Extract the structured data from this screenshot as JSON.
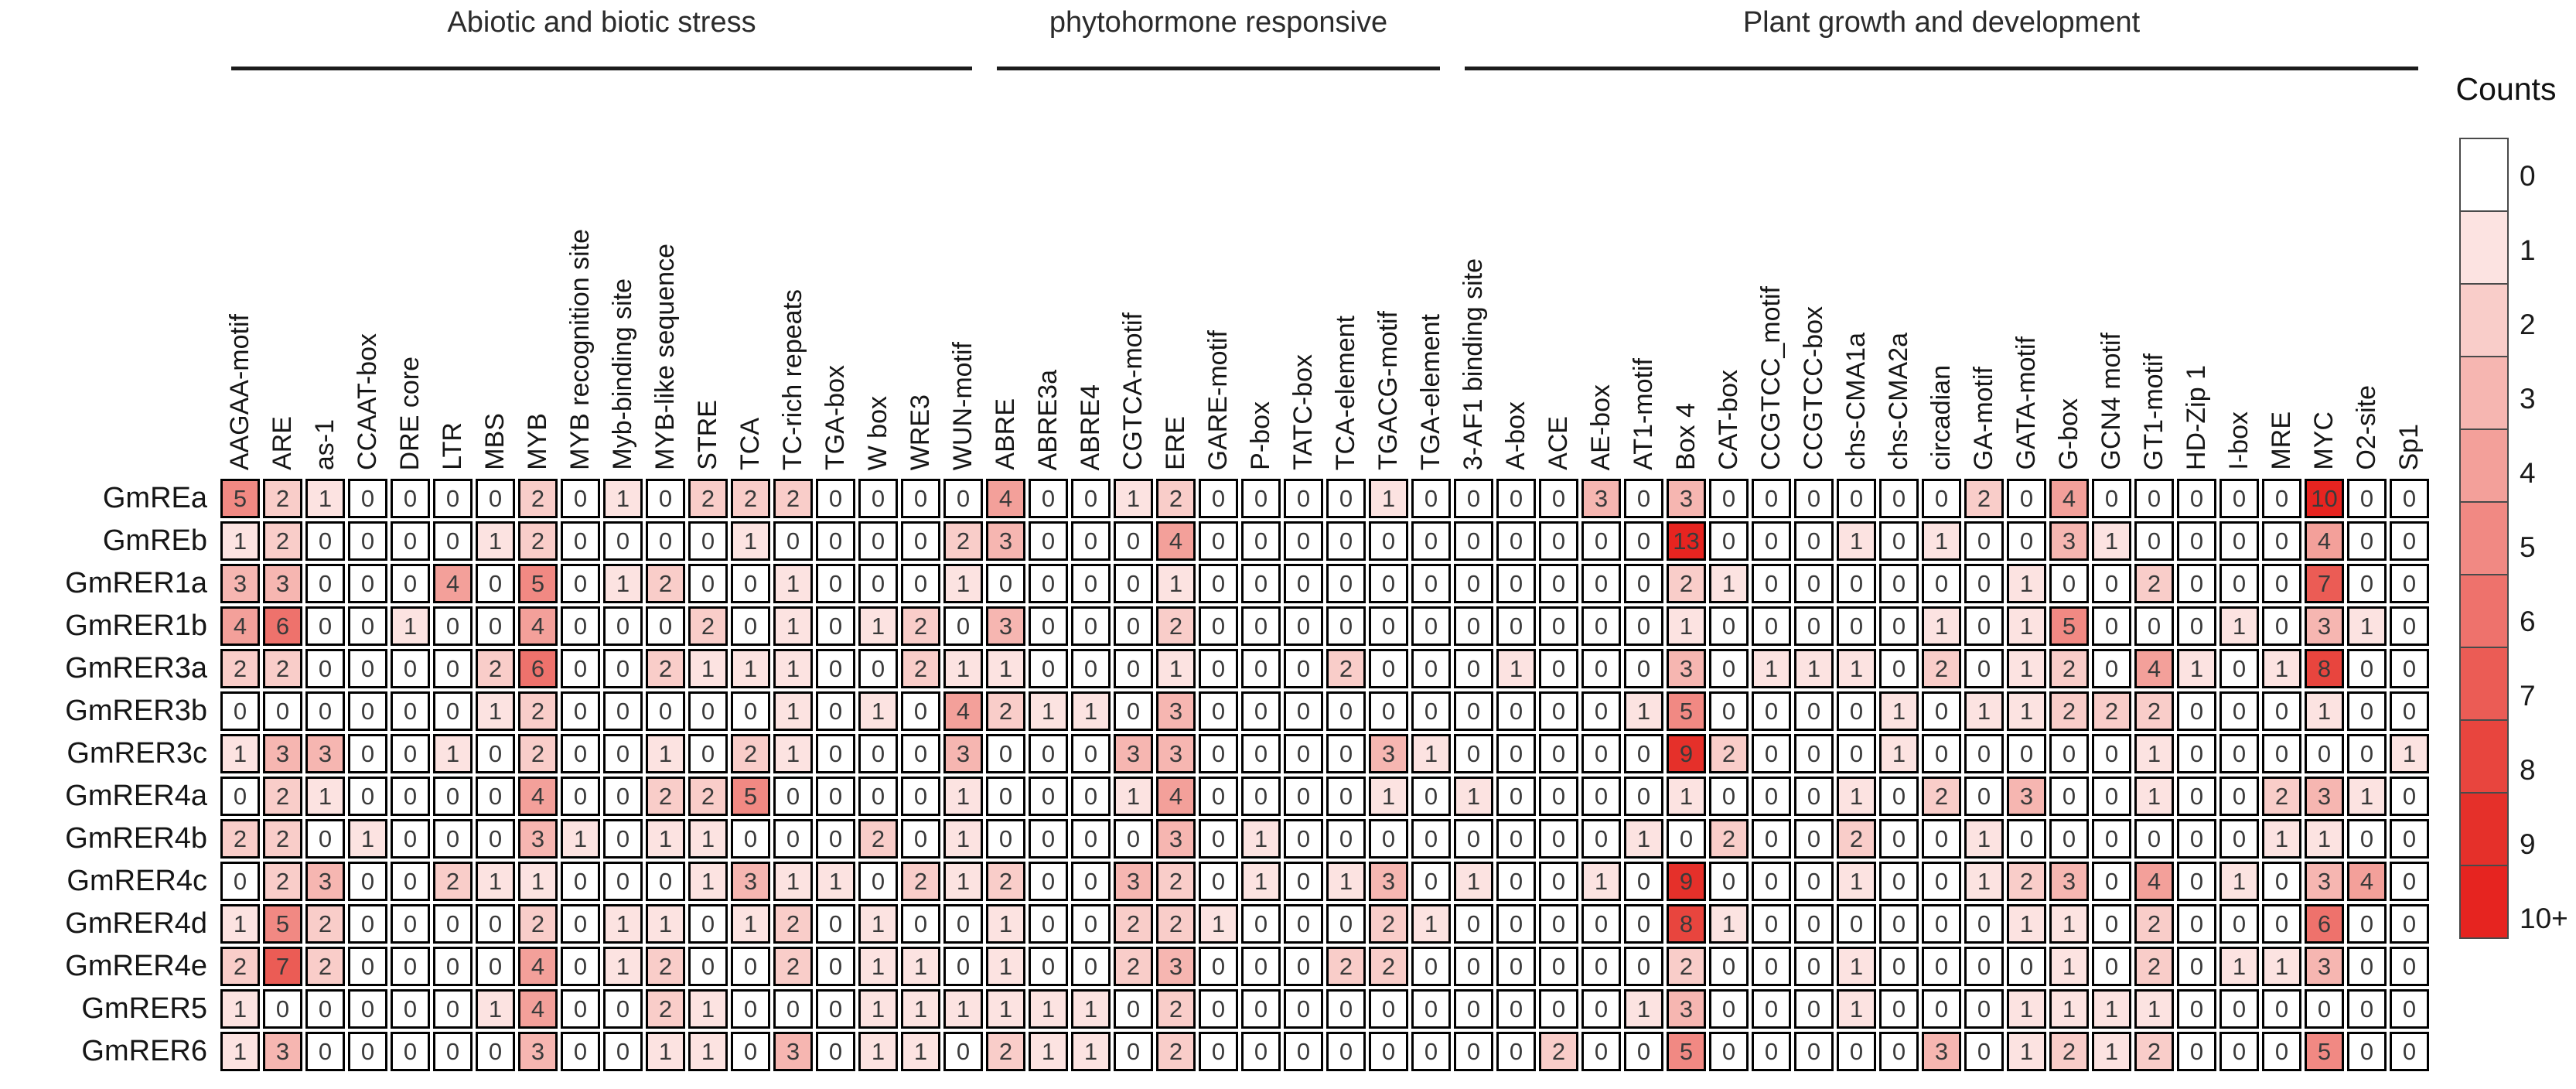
{
  "figure": {
    "legend_title": "Counts"
  },
  "chart_data": {
    "type": "heatmap",
    "title": "",
    "xlabel": "",
    "ylabel": "",
    "grid": "cells-outlined",
    "legend_position": "right",
    "rows": [
      "GmREa",
      "GmREb",
      "GmRER1a",
      "GmRER1b",
      "GmRER3a",
      "GmRER3b",
      "GmRER3c",
      "GmRER4a",
      "GmRER4b",
      "GmRER4c",
      "GmRER4d",
      "GmRER4e",
      "GmRER5",
      "GmRER6"
    ],
    "columns": [
      "AAGAA-motif",
      "ARE",
      "as-1",
      "CCAAT-box",
      "DRE core",
      "LTR",
      "MBS",
      "MYB",
      "MYB recognition site",
      "Myb-binding site",
      "MYB-like sequence",
      "STRE",
      "TCA",
      "TC-rich repeats",
      "TGA-box",
      "W box",
      "WRE3",
      "WUN-motif",
      "ABRE",
      "ABRE3a",
      "ABRE4",
      "CGTCA-motif",
      "ERE",
      "GARE-motif",
      "P-box",
      "TATC-box",
      "TCA-element",
      "TGACG-motif",
      "TGA-element",
      "3-AF1 binding site",
      "A-box",
      "ACE",
      "AE-box",
      "AT1-motif",
      "Box 4",
      "CAT-box",
      "CCGTCC_motif",
      "CCGTCC-box",
      "chs-CMA1a",
      "chs-CMA2a",
      "circadian",
      "GA-motif",
      "GATA-motif",
      "G-box",
      "GCN4 motif",
      "GT1-motif",
      "HD-Zip 1",
      "I-box",
      "MRE",
      "MYC",
      "O2-site",
      "Sp1"
    ],
    "groups": [
      {
        "label": "Abiotic and biotic stress",
        "start": 0,
        "end": 17
      },
      {
        "label": "phytohormone responsive",
        "start": 18,
        "end": 28
      },
      {
        "label": "Plant growth and development",
        "start": 29,
        "end": 51
      }
    ],
    "values": [
      [
        5,
        2,
        1,
        0,
        0,
        0,
        0,
        2,
        0,
        1,
        0,
        2,
        2,
        2,
        0,
        0,
        0,
        0,
        4,
        0,
        0,
        1,
        2,
        0,
        0,
        0,
        0,
        1,
        0,
        0,
        0,
        0,
        3,
        0,
        3,
        0,
        0,
        0,
        0,
        0,
        0,
        2,
        0,
        4,
        0,
        0,
        0,
        0,
        0,
        10,
        0,
        0
      ],
      [
        1,
        2,
        0,
        0,
        0,
        0,
        1,
        2,
        0,
        0,
        0,
        0,
        1,
        0,
        0,
        0,
        0,
        2,
        3,
        0,
        0,
        0,
        4,
        0,
        0,
        0,
        0,
        0,
        0,
        0,
        0,
        0,
        0,
        0,
        13,
        0,
        0,
        0,
        1,
        0,
        1,
        0,
        0,
        3,
        1,
        0,
        0,
        0,
        0,
        4,
        0,
        0
      ],
      [
        3,
        3,
        0,
        0,
        0,
        4,
        0,
        5,
        0,
        1,
        2,
        0,
        0,
        1,
        0,
        0,
        0,
        1,
        0,
        0,
        0,
        0,
        1,
        0,
        0,
        0,
        0,
        0,
        0,
        0,
        0,
        0,
        0,
        0,
        2,
        1,
        0,
        0,
        0,
        0,
        0,
        0,
        1,
        0,
        0,
        2,
        0,
        0,
        0,
        7,
        0,
        0
      ],
      [
        4,
        6,
        0,
        0,
        1,
        0,
        0,
        4,
        0,
        0,
        0,
        2,
        0,
        1,
        0,
        1,
        2,
        0,
        3,
        0,
        0,
        0,
        2,
        0,
        0,
        0,
        0,
        0,
        0,
        0,
        0,
        0,
        0,
        0,
        1,
        0,
        0,
        0,
        0,
        0,
        1,
        0,
        1,
        5,
        0,
        0,
        0,
        1,
        0,
        3,
        1,
        0
      ],
      [
        2,
        2,
        0,
        0,
        0,
        0,
        2,
        6,
        0,
        0,
        2,
        1,
        1,
        1,
        0,
        0,
        2,
        1,
        1,
        0,
        0,
        0,
        1,
        0,
        0,
        0,
        2,
        0,
        0,
        0,
        1,
        0,
        0,
        0,
        3,
        0,
        1,
        1,
        1,
        0,
        2,
        0,
        1,
        2,
        0,
        4,
        1,
        0,
        1,
        8,
        0,
        0
      ],
      [
        0,
        0,
        0,
        0,
        0,
        0,
        1,
        2,
        0,
        0,
        0,
        0,
        0,
        1,
        0,
        1,
        0,
        4,
        2,
        1,
        1,
        0,
        3,
        0,
        0,
        0,
        0,
        0,
        0,
        0,
        0,
        0,
        0,
        1,
        5,
        0,
        0,
        0,
        0,
        1,
        0,
        1,
        1,
        2,
        2,
        2,
        0,
        0,
        0,
        1,
        0,
        0
      ],
      [
        1,
        3,
        3,
        0,
        0,
        1,
        0,
        2,
        0,
        0,
        1,
        0,
        2,
        1,
        0,
        0,
        0,
        3,
        0,
        0,
        0,
        3,
        3,
        0,
        0,
        0,
        0,
        3,
        1,
        0,
        0,
        0,
        0,
        0,
        9,
        2,
        0,
        0,
        0,
        1,
        0,
        0,
        0,
        0,
        0,
        1,
        0,
        0,
        0,
        0,
        0,
        1
      ],
      [
        0,
        2,
        1,
        0,
        0,
        0,
        0,
        4,
        0,
        0,
        2,
        2,
        5,
        0,
        0,
        0,
        0,
        1,
        0,
        0,
        0,
        1,
        4,
        0,
        0,
        0,
        0,
        1,
        0,
        1,
        0,
        0,
        0,
        0,
        1,
        0,
        0,
        0,
        1,
        0,
        2,
        0,
        3,
        0,
        0,
        1,
        0,
        0,
        2,
        3,
        1,
        0
      ],
      [
        2,
        2,
        0,
        1,
        0,
        0,
        0,
        3,
        1,
        0,
        1,
        1,
        0,
        0,
        0,
        2,
        0,
        1,
        0,
        0,
        0,
        0,
        3,
        0,
        1,
        0,
        0,
        0,
        0,
        0,
        0,
        0,
        0,
        1,
        0,
        2,
        0,
        0,
        2,
        0,
        0,
        1,
        0,
        0,
        0,
        0,
        0,
        0,
        1,
        1,
        0,
        0
      ],
      [
        0,
        2,
        3,
        0,
        0,
        2,
        1,
        1,
        0,
        0,
        0,
        1,
        3,
        1,
        1,
        0,
        2,
        1,
        2,
        0,
        0,
        3,
        2,
        0,
        1,
        0,
        1,
        3,
        0,
        1,
        0,
        0,
        1,
        0,
        9,
        0,
        0,
        0,
        1,
        0,
        0,
        1,
        2,
        3,
        0,
        4,
        0,
        1,
        0,
        3,
        4,
        0
      ],
      [
        1,
        5,
        2,
        0,
        0,
        0,
        0,
        2,
        0,
        1,
        1,
        0,
        1,
        2,
        0,
        1,
        0,
        0,
        1,
        0,
        0,
        2,
        2,
        1,
        0,
        0,
        0,
        2,
        1,
        0,
        0,
        0,
        0,
        0,
        8,
        1,
        0,
        0,
        0,
        0,
        0,
        0,
        1,
        1,
        0,
        2,
        0,
        0,
        0,
        6,
        0,
        0
      ],
      [
        2,
        7,
        2,
        0,
        0,
        0,
        0,
        4,
        0,
        1,
        2,
        0,
        0,
        2,
        0,
        1,
        1,
        0,
        1,
        0,
        0,
        2,
        3,
        0,
        0,
        0,
        2,
        2,
        0,
        0,
        0,
        0,
        0,
        0,
        2,
        0,
        0,
        0,
        1,
        0,
        0,
        0,
        0,
        1,
        0,
        2,
        0,
        1,
        1,
        3,
        0,
        0
      ],
      [
        1,
        0,
        0,
        0,
        0,
        0,
        1,
        4,
        0,
        0,
        2,
        1,
        0,
        0,
        0,
        1,
        1,
        1,
        1,
        1,
        1,
        0,
        2,
        0,
        0,
        0,
        0,
        0,
        0,
        0,
        0,
        0,
        0,
        1,
        3,
        0,
        0,
        0,
        1,
        0,
        0,
        0,
        1,
        1,
        1,
        1,
        0,
        0,
        0,
        0,
        0,
        0
      ],
      [
        1,
        3,
        0,
        0,
        0,
        0,
        0,
        3,
        0,
        0,
        1,
        1,
        0,
        3,
        0,
        1,
        1,
        0,
        2,
        1,
        1,
        0,
        2,
        0,
        0,
        0,
        0,
        0,
        0,
        0,
        0,
        2,
        0,
        0,
        5,
        0,
        0,
        0,
        0,
        0,
        3,
        0,
        1,
        2,
        1,
        2,
        0,
        0,
        0,
        5,
        0,
        0
      ]
    ],
    "legend": {
      "title": "Counts",
      "labels": [
        "0",
        "1",
        "2",
        "3",
        "4",
        "5",
        "6",
        "7",
        "8",
        "9",
        "10+"
      ],
      "colors": [
        "#ffffff",
        "#fce3e1",
        "#f9cdc9",
        "#f6b6b1",
        "#f3a09a",
        "#f18983",
        "#ee726c",
        "#eb5c55",
        "#e8453e",
        "#e5302a",
        "#e62420"
      ]
    }
  }
}
